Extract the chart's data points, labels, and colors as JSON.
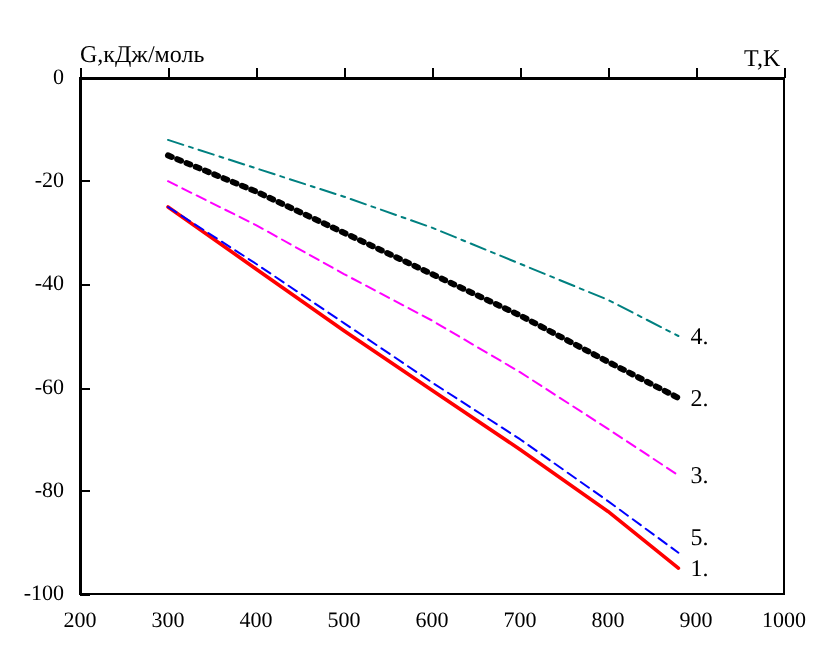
{
  "chart_data": {
    "type": "line",
    "xlabel": "T,K",
    "ylabel": "G,кДж/моль",
    "x": [
      300,
      400,
      500,
      600,
      700,
      800,
      880
    ],
    "series": [
      {
        "name": "4.",
        "color": "#008080",
        "line_style": "dashdot",
        "values": [
          -12,
          -17.5,
          -23,
          -29,
          -36,
          -43,
          -50
        ]
      },
      {
        "name": "2.",
        "color": "#000000",
        "line_style": "dotted",
        "values": [
          -15,
          -22,
          -30,
          -38,
          -46,
          -55,
          -62
        ]
      },
      {
        "name": "3.",
        "color": "#ff00ff",
        "line_style": "dashed",
        "values": [
          -20,
          -28.5,
          -38,
          -47,
          -57,
          -68,
          -77
        ]
      },
      {
        "name": "5.",
        "color": "#0000ff",
        "line_style": "dashed",
        "values": [
          -25,
          -36,
          -47.5,
          -59,
          -70,
          -82,
          -92
        ]
      },
      {
        "name": "1.",
        "color": "#ff0000",
        "line_style": "solid",
        "values": [
          -25,
          -37,
          -49,
          -60.5,
          -72,
          -84,
          -95
        ]
      }
    ],
    "xlim": [
      200,
      1000
    ],
    "xticks": [
      200,
      300,
      400,
      500,
      600,
      700,
      800,
      900,
      1000
    ],
    "ylim": [
      -100,
      0
    ],
    "yticks": [
      -100,
      -80,
      -60,
      -40,
      -20,
      0
    ],
    "grid": false,
    "legend": false,
    "marker": "none"
  }
}
